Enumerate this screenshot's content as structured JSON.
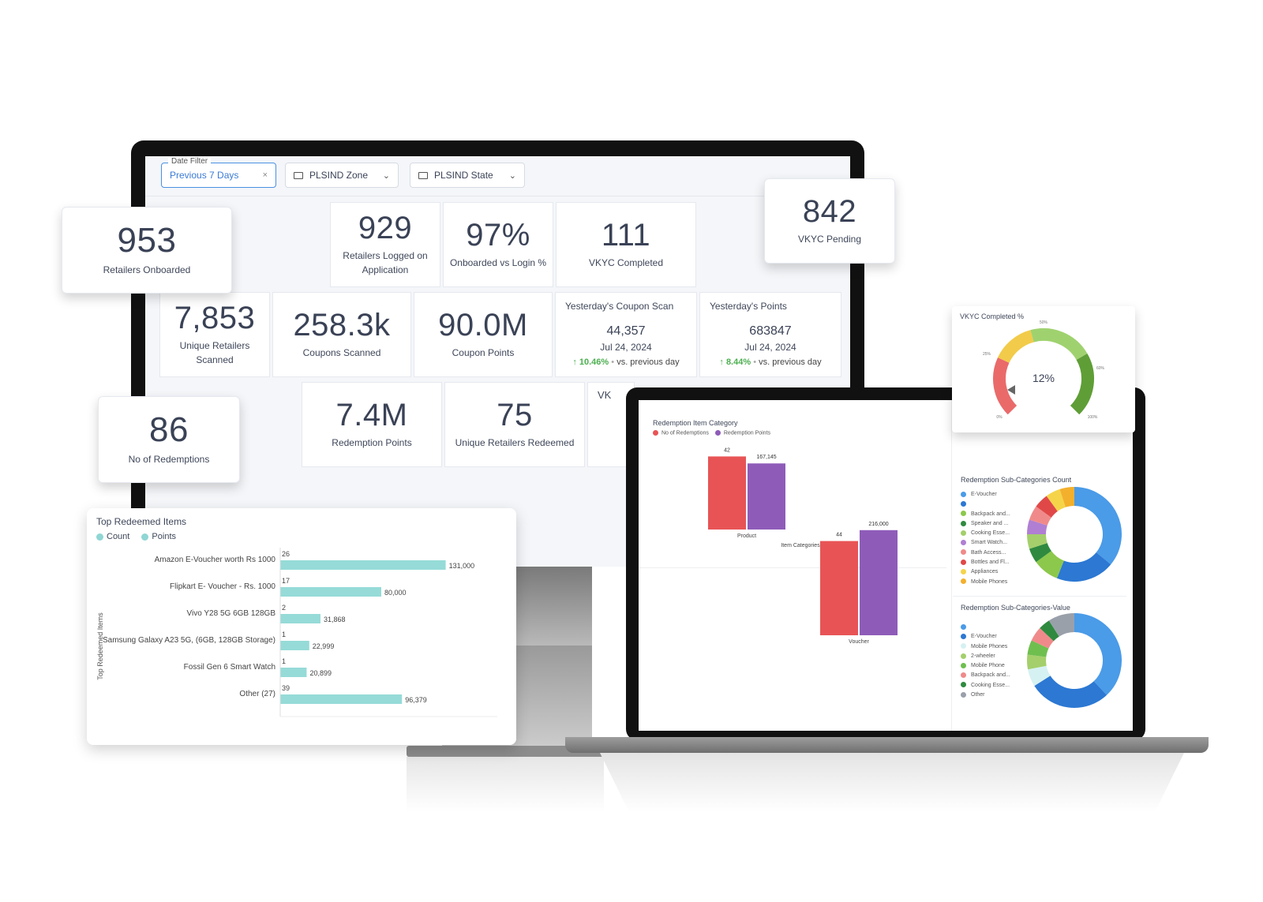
{
  "filters": {
    "date": {
      "legend": "Date Filter",
      "value": "Previous 7 Days",
      "clear": "×"
    },
    "zone": {
      "label": "PLSIND Zone"
    },
    "state": {
      "label": "PLSIND State"
    }
  },
  "kpis": {
    "retailers_onboarded": {
      "value": "953",
      "label": "Retailers Onboarded"
    },
    "retailers_logged": {
      "value": "929",
      "label_line1": "Retailers Logged on",
      "label_line2": "Application"
    },
    "onboarded_vs_login": {
      "value": "97%",
      "label": "Onboarded vs Login %"
    },
    "vkyc_completed": {
      "value": "111",
      "label": "VKYC Completed"
    },
    "vkyc_pending": {
      "value": "842",
      "label": "VKYC Pending"
    },
    "unique_retailers_scanned": {
      "value": "7,853",
      "label_line1": "Unique Retailers",
      "label_line2": "Scanned"
    },
    "coupons_scanned": {
      "value": "258.3k",
      "label": "Coupons Scanned"
    },
    "coupon_points": {
      "value": "90.0M",
      "label": "Coupon Points"
    },
    "no_of_redemptions": {
      "value": "86",
      "label": "No of Redemptions"
    },
    "redemption_points": {
      "value": "7.4M",
      "label": "Redemption Points"
    },
    "unique_retailers_redeemed": {
      "value": "75",
      "label": "Unique Retailers Redeemed"
    },
    "partial_vk": {
      "value": "VK"
    }
  },
  "yesterday_coupon_scan": {
    "title": "Yesterday's Coupon Scan",
    "value": "44,357",
    "date": "Jul 24, 2024",
    "delta": "10.46%",
    "sep": "•",
    "comparison": "vs. previous day"
  },
  "yesterday_points": {
    "title": "Yesterday's Points",
    "value": "683847",
    "date": "Jul 24, 2024",
    "delta": "8.44%",
    "sep": "•",
    "comparison": "vs. previous day"
  },
  "top_redeemed": {
    "title": "Top Redeemed Items",
    "legend": [
      "Count",
      "Points"
    ],
    "axis_label": "Top Redeemed Items"
  },
  "vkyc_gauge": {
    "title": "VKYC Completed %",
    "value": "12%",
    "ticks": [
      "0%",
      "25%",
      "50%",
      "60%",
      "100%"
    ]
  },
  "redemption_item_category": {
    "title": "Redemption Item Category",
    "legend": [
      "No of Redemptions",
      "Redemption Points"
    ],
    "x_title": "Item Categories"
  },
  "subcat_count": {
    "title": "Redemption Sub-Categories Count",
    "legend": [
      "E-Voucher",
      "",
      "Backpack and...",
      "Speaker and ...",
      "Cooking Esse...",
      "Smart Watch...",
      "Bath Access...",
      "Bottles and Fl...",
      "Appliances",
      "Mobile Phones"
    ]
  },
  "subcat_value": {
    "title": "Redemption Sub-Categories-Value",
    "legend": [
      "",
      "E-Voucher",
      "Mobile Phones",
      "2-wheeler",
      "Mobile Phone",
      "Backpack and...",
      "Cooking Esse...",
      "Other"
    ]
  },
  "colors": {
    "red": "#e85456",
    "purple": "#8e5cb8",
    "teal": "#96dbd8",
    "blue": "#3a87d6",
    "gauge_red": "#ea6a6a",
    "gauge_yellow": "#f2cb4a",
    "gauge_lightgreen": "#9fd26f",
    "gauge_green": "#5f9e36"
  },
  "chart_data": [
    {
      "type": "bar",
      "title": "Top Redeemed Items",
      "ylabel": "Top Redeemed Items",
      "categories": [
        "Amazon E-Voucher worth Rs 1000",
        "Flipkart E- Voucher - Rs. 1000",
        "Vivo Y28 5G 6GB 128GB",
        "Samsung Galaxy A23 5G, (6GB, 128GB Storage)",
        "Fossil Gen 6 Smart Watch",
        "Other (27)"
      ],
      "series": [
        {
          "name": "Count",
          "values": [
            26,
            17,
            2,
            1,
            1,
            39
          ]
        },
        {
          "name": "Points",
          "values": [
            131000,
            80000,
            31868,
            22999,
            20899,
            96379
          ]
        }
      ],
      "value_labels": {
        "Count": [
          "26",
          "17",
          "2",
          "1",
          "1",
          "39"
        ],
        "Points": [
          "131,000",
          "80,000",
          "31,868",
          "22,999",
          "20,899",
          "96,379"
        ]
      },
      "xlim": [
        0,
        140000
      ]
    },
    {
      "type": "bar",
      "title": "Redemption Item Category",
      "xlabel": "Item Categories",
      "categories": [
        "Product",
        "Voucher"
      ],
      "series": [
        {
          "name": "No of Redemptions",
          "values": [
            42,
            44
          ]
        },
        {
          "name": "Redemption Points",
          "values": [
            167145,
            216000
          ]
        }
      ],
      "value_labels": {
        "No of Redemptions": [
          "42",
          "44"
        ],
        "Redemption Points": [
          "167,145",
          "216,000"
        ]
      }
    },
    {
      "type": "pie",
      "title": "Redemption Sub-Categories Count",
      "labels": [
        "E-Voucher",
        "",
        "Backpack and...",
        "Speaker and ...",
        "Cooking Esse...",
        "Smart Watch...",
        "Bath Access...",
        "Bottles and Fl...",
        "Appliances",
        "Mobile Phones"
      ],
      "values": [
        36,
        20,
        9,
        5,
        5,
        5,
        5,
        5,
        5,
        5
      ],
      "colors": [
        "#4a9be8",
        "#2c78d3",
        "#8cc84b",
        "#2f8a3f",
        "#a4cf6b",
        "#b07fd3",
        "#f08a8a",
        "#e04848",
        "#f5d44a",
        "#f3b02d"
      ]
    },
    {
      "type": "pie",
      "title": "Redemption Sub-Categories-Value",
      "labels": [
        "",
        "E-Voucher",
        "Mobile Phones",
        "2-wheeler",
        "Mobile Phone",
        "Backpack and...",
        "Cooking Esse...",
        "Other"
      ],
      "values": [
        38,
        28,
        6,
        5,
        5,
        5,
        4,
        9
      ],
      "colors": [
        "#4a9be8",
        "#2c78d3",
        "#d6f1f2",
        "#a4cf6b",
        "#6fbf4f",
        "#f08a8a",
        "#2f8a3f",
        "#9aa0aa"
      ]
    }
  ]
}
